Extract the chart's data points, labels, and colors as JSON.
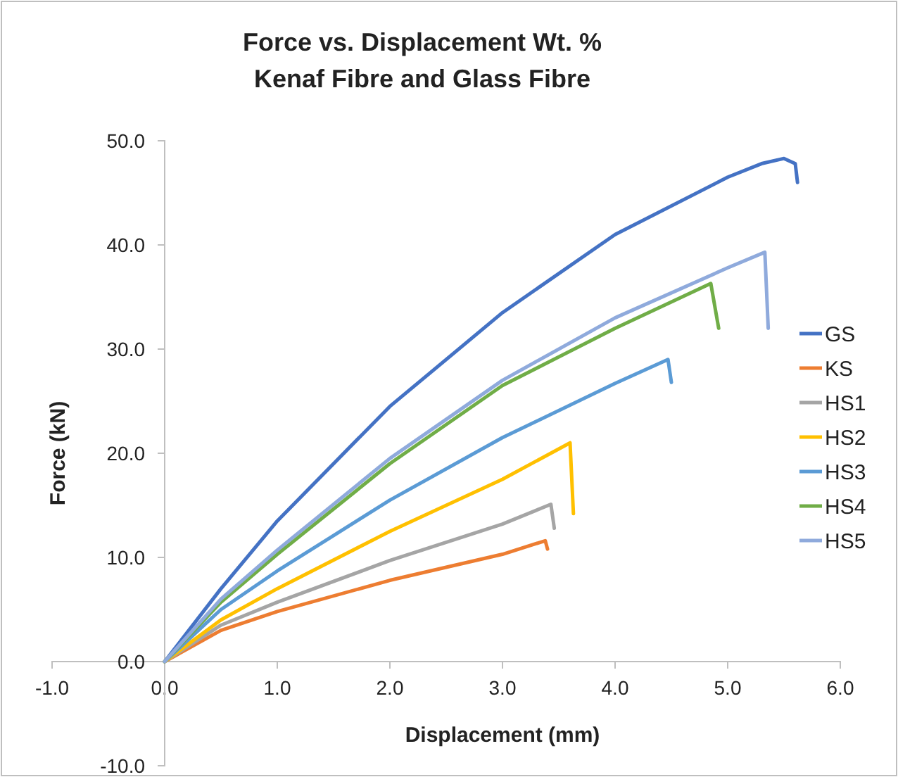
{
  "chart_data": {
    "type": "line",
    "title": "Force vs. Displacement Wt. %\nKenaf Fibre and Glass Fibre",
    "xlabel": "Displacement (mm)",
    "ylabel": "Force (kN)",
    "xlim": [
      -1,
      6
    ],
    "ylim": [
      -10,
      50
    ],
    "xticks": [
      {
        "value": -1,
        "label": "-1.0"
      },
      {
        "value": 0,
        "label": "0.0"
      },
      {
        "value": 1,
        "label": "1.0"
      },
      {
        "value": 2,
        "label": "2.0"
      },
      {
        "value": 3,
        "label": "3.0"
      },
      {
        "value": 4,
        "label": "4.0"
      },
      {
        "value": 5,
        "label": "5.0"
      },
      {
        "value": 6,
        "label": "6.0"
      }
    ],
    "yticks": [
      {
        "value": -10,
        "label": "-10.0"
      },
      {
        "value": 0,
        "label": "0.0"
      },
      {
        "value": 10,
        "label": "10.0"
      },
      {
        "value": 20,
        "label": "20.0"
      },
      {
        "value": 30,
        "label": "30.0"
      },
      {
        "value": 40,
        "label": "40.0"
      },
      {
        "value": 50,
        "label": "50.0"
      }
    ],
    "grid": false,
    "legend": "right",
    "marker": "none",
    "line_style": "solid",
    "series": [
      {
        "name": "GS",
        "color": "#4472c4",
        "x": [
          0,
          0.5,
          1,
          2,
          3,
          4,
          5,
          5.3,
          5.5,
          5.6,
          5.62
        ],
        "values": [
          0,
          7,
          13.5,
          24.5,
          33.5,
          41,
          46.5,
          47.8,
          48.3,
          47.8,
          46
        ]
      },
      {
        "name": "KS",
        "color": "#ed7d31",
        "x": [
          0,
          0.5,
          1,
          2,
          3,
          3.38,
          3.4
        ],
        "values": [
          0,
          3,
          4.8,
          7.8,
          10.3,
          11.6,
          10.8
        ]
      },
      {
        "name": "HS1",
        "color": "#a5a5a5",
        "x": [
          0,
          0.5,
          1,
          2,
          3,
          3.43,
          3.46
        ],
        "values": [
          0,
          3.5,
          5.7,
          9.7,
          13.2,
          15.1,
          12.8
        ]
      },
      {
        "name": "HS2",
        "color": "#ffc000",
        "x": [
          0,
          0.5,
          1,
          2,
          3,
          3.6,
          3.63
        ],
        "values": [
          0,
          4,
          7,
          12.5,
          17.5,
          21,
          14.2
        ]
      },
      {
        "name": "HS3",
        "color": "#5b9bd5",
        "x": [
          0,
          0.5,
          1,
          2,
          3,
          4,
          4.47,
          4.5
        ],
        "values": [
          0,
          5,
          8.7,
          15.5,
          21.5,
          26.7,
          29,
          26.8
        ]
      },
      {
        "name": "HS4",
        "color": "#70ad47",
        "x": [
          0,
          0.5,
          1,
          2,
          3,
          4,
          4.85,
          4.92
        ],
        "values": [
          0,
          5.7,
          10.3,
          19,
          26.5,
          32,
          36.3,
          32
        ]
      },
      {
        "name": "HS5",
        "color": "#8faadc",
        "x": [
          0,
          0.5,
          1,
          2,
          3,
          4,
          5,
          5.33,
          5.36
        ],
        "values": [
          0,
          6,
          10.7,
          19.5,
          27,
          33,
          37.8,
          39.3,
          32
        ]
      }
    ]
  }
}
